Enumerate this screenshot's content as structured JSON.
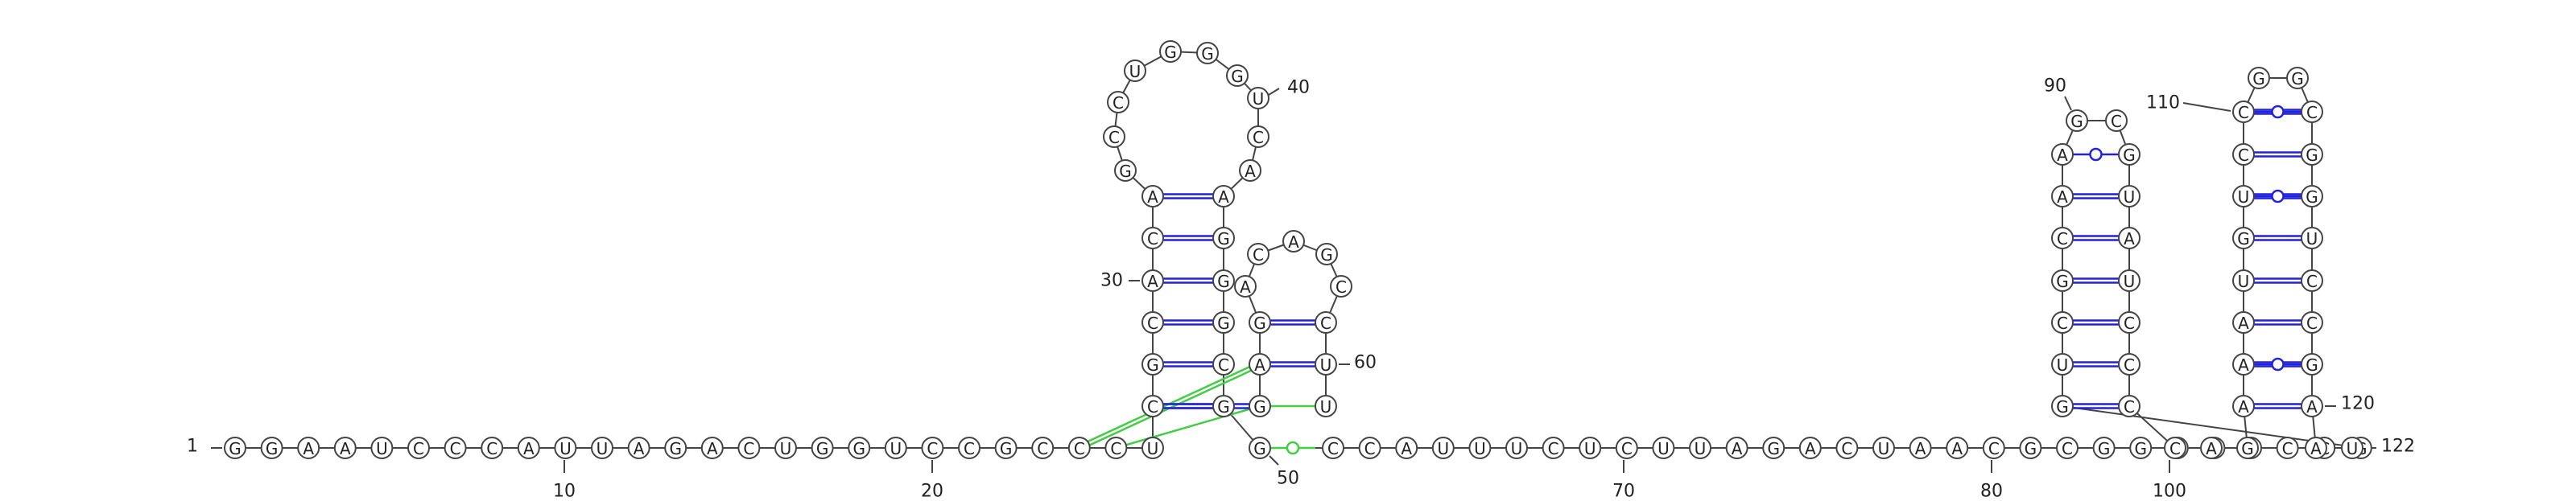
{
  "sequence": "GGAAUCCCAUUAGACUGGUCCGCCCUCGCACAGCCUGGGUCAACAGAGGGCGGCCAUUUCUCUUAGACUAACGCGGCAUCCGGUCGCAAGCGUAUCCCCAGAAAUGUCCGGCGGUCCGAGAUUCU",
  "colors": {
    "backbone": "#444444",
    "canonical_pair": "#2222dd",
    "noncanonical_pair": "#44cc44"
  },
  "labels": {
    "n1": "1",
    "n10": "10",
    "n20": "20",
    "n30": "30",
    "n40": "40",
    "n50": "50",
    "n60": "60",
    "n70": "70",
    "n80": "80",
    "n90": "90",
    "n100": "100",
    "n110": "110",
    "n120": "120",
    "n122": "122"
  },
  "canonical_pairs": [
    [
      26,
      53
    ],
    [
      27,
      52
    ],
    [
      28,
      51
    ],
    [
      29,
      50
    ],
    [
      30,
      49
    ],
    [
      31,
      48
    ],
    [
      32,
      47
    ],
    [
      48,
      61
    ],
    [
      49,
      60
    ],
    [
      82,
      98
    ],
    [
      83,
      97
    ],
    [
      84,
      96
    ],
    [
      85,
      95
    ],
    [
      86,
      94
    ],
    [
      87,
      93
    ],
    [
      88,
      92
    ],
    [
      102,
      121
    ],
    [
      103,
      120
    ],
    [
      104,
      119
    ],
    [
      105,
      118
    ],
    [
      106,
      117
    ],
    [
      107,
      116
    ],
    [
      108,
      115
    ],
    [
      109,
      114
    ],
    [
      110,
      113
    ]
  ],
  "gu_wobble_pairs": [
    88,
    104,
    106,
    109
  ],
  "noncanonical_pairs": [
    [
      51,
      58
    ],
    [
      24,
      49
    ],
    [
      25,
      50
    ],
    [
      25,
      58
    ]
  ]
}
